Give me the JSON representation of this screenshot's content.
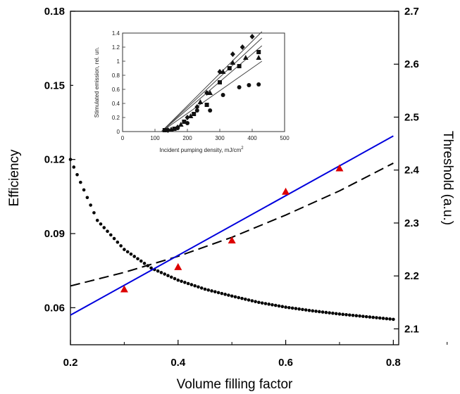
{
  "chart_data": [
    {
      "type": "line",
      "xlabel": "Volume filling factor",
      "ylabel_left": "Efficiency",
      "ylabel_right": "Threshold (a.u.)",
      "xlim": [
        0.2,
        0.81
      ],
      "ylim_left": [
        0.045,
        0.18
      ],
      "ylim_right": [
        2.07,
        2.7
      ],
      "x_ticks": [
        "0.2",
        "0.4",
        "0.6",
        "0.8"
      ],
      "y_left_ticks": [
        "0.06",
        "0.09",
        "0.12",
        "0.15",
        "0.18"
      ],
      "y_right_ticks": [
        "2.1",
        "2.2",
        "2.3",
        "2.4",
        "2.5",
        "2.6",
        "2.7"
      ],
      "colors": {
        "fit_line": "#0000dd",
        "markers": "#dd0000",
        "dashed": "#000000",
        "dotted": "#000000"
      },
      "series": [
        {
          "style": "solid-line",
          "axis": "left",
          "x": [
            0.2,
            0.8
          ],
          "y": [
            0.057,
            0.1295
          ]
        },
        {
          "style": "triangle-markers",
          "axis": "left",
          "x": [
            0.3,
            0.4,
            0.5,
            0.6,
            0.7
          ],
          "y": [
            0.0675,
            0.0765,
            0.0873,
            0.107,
            0.1165
          ]
        },
        {
          "style": "dashed-line",
          "axis": "left",
          "x": [
            0.2,
            0.3,
            0.4,
            0.5,
            0.6,
            0.7,
            0.8
          ],
          "y": [
            0.0688,
            0.0743,
            0.0808,
            0.0885,
            0.0975,
            0.1073,
            0.1185
          ]
        },
        {
          "style": "dotted-line",
          "axis": "right",
          "x": [
            0.2,
            0.25,
            0.3,
            0.35,
            0.4,
            0.45,
            0.5,
            0.55,
            0.6,
            0.65,
            0.7,
            0.75,
            0.8
          ],
          "y": [
            2.42,
            2.305,
            2.25,
            2.215,
            2.192,
            2.175,
            2.162,
            2.15,
            2.141,
            2.134,
            2.128,
            2.123,
            2.118
          ]
        }
      ]
    },
    {
      "type": "scatter",
      "xlabel": "Incident pumping density, mJ/cm",
      "xlabel_superscript": "2",
      "ylabel": "Stimulated emission, rel. un.",
      "xlim": [
        0,
        500
      ],
      "ylim": [
        0,
        1.4
      ],
      "x_ticks": [
        "0",
        "100",
        "200",
        "300",
        "400",
        "500"
      ],
      "y_ticks": [
        "0",
        "0.2",
        "0.4",
        "0.6",
        "0.8",
        "1",
        "1.2",
        "1.4"
      ],
      "series": [
        {
          "marker": "diamond",
          "x": [
            140,
            170,
            200,
            230,
            260,
            300,
            340,
            370,
            400
          ],
          "y": [
            0.02,
            0.06,
            0.2,
            0.35,
            0.55,
            0.85,
            1.1,
            1.2,
            1.35
          ]
        },
        {
          "marker": "square",
          "x": [
            130,
            160,
            190,
            220,
            260,
            300,
            330,
            360,
            420
          ],
          "y": [
            0.02,
            0.04,
            0.14,
            0.25,
            0.38,
            0.7,
            0.9,
            0.93,
            1.13
          ]
        },
        {
          "marker": "triangle",
          "x": [
            150,
            180,
            210,
            240,
            270,
            310,
            340,
            380,
            420
          ],
          "y": [
            0.03,
            0.1,
            0.22,
            0.42,
            0.55,
            0.85,
            0.98,
            1.05,
            1.05
          ]
        },
        {
          "marker": "circle",
          "x": [
            140,
            170,
            200,
            230,
            270,
            310,
            360,
            390,
            420
          ],
          "y": [
            0.02,
            0.05,
            0.12,
            0.3,
            0.3,
            0.52,
            0.63,
            0.66,
            0.67
          ]
        }
      ],
      "fit_lines": [
        {
          "x": [
            120,
            430
          ],
          "y": [
            0.0,
            1.42
          ]
        },
        {
          "x": [
            120,
            430
          ],
          "y": [
            0.0,
            1.33
          ]
        },
        {
          "x": [
            120,
            430
          ],
          "y": [
            0.0,
            1.22
          ]
        },
        {
          "x": [
            120,
            430
          ],
          "y": [
            0.0,
            1.0
          ]
        }
      ]
    }
  ]
}
